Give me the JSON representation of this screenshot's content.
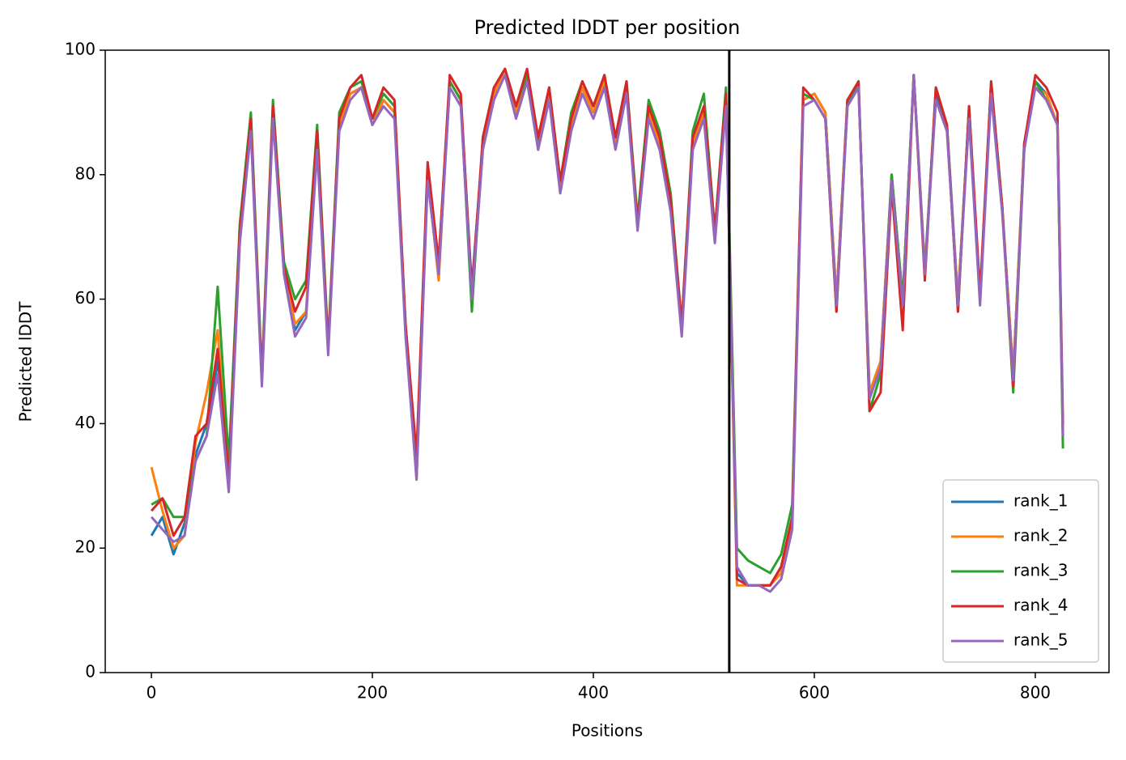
{
  "chart_data": {
    "type": "line",
    "title": "Predicted lDDT per position",
    "xlabel": "Positions",
    "ylabel": "Predicted lDDT",
    "x": [
      0,
      10,
      20,
      30,
      40,
      50,
      60,
      70,
      80,
      90,
      100,
      110,
      120,
      130,
      140,
      150,
      160,
      170,
      180,
      190,
      200,
      210,
      220,
      230,
      240,
      250,
      260,
      270,
      280,
      290,
      300,
      310,
      320,
      330,
      340,
      350,
      360,
      370,
      380,
      390,
      400,
      410,
      420,
      430,
      440,
      450,
      460,
      470,
      480,
      490,
      500,
      510,
      520,
      530,
      540,
      550,
      560,
      570,
      580,
      590,
      600,
      610,
      620,
      630,
      640,
      650,
      660,
      670,
      680,
      690,
      700,
      710,
      720,
      730,
      740,
      750,
      760,
      770,
      780,
      790,
      800,
      810,
      820,
      825
    ],
    "series": [
      {
        "name": "rank_1",
        "color": "#1f77b4",
        "values": [
          22,
          25,
          19,
          24,
          35,
          40,
          50,
          30,
          70,
          88,
          47,
          90,
          65,
          55,
          58,
          85,
          52,
          88,
          93,
          94,
          88,
          92,
          90,
          55,
          32,
          80,
          65,
          95,
          92,
          62,
          85,
          93,
          97,
          90,
          96,
          85,
          93,
          78,
          88,
          94,
          90,
          95,
          85,
          94,
          72,
          90,
          85,
          75,
          55,
          85,
          90,
          70,
          92,
          16,
          14,
          14,
          14,
          17,
          25,
          92,
          93,
          90,
          60,
          92,
          94,
          45,
          50,
          80,
          60,
          96,
          65,
          93,
          88,
          60,
          90,
          60,
          94,
          75,
          48,
          85,
          95,
          93,
          88,
          38
        ]
      },
      {
        "name": "rank_2",
        "color": "#ff7f0e",
        "values": [
          33,
          26,
          20,
          22,
          37,
          45,
          55,
          30,
          69,
          88,
          47,
          90,
          65,
          56,
          58,
          85,
          52,
          88,
          93,
          94,
          88,
          92,
          90,
          55,
          31,
          80,
          63,
          95,
          92,
          60,
          84,
          93,
          97,
          90,
          96,
          84,
          93,
          78,
          88,
          94,
          90,
          95,
          85,
          94,
          72,
          90,
          85,
          75,
          55,
          85,
          90,
          70,
          92,
          14,
          14,
          14,
          14,
          16,
          24,
          92,
          93,
          90,
          60,
          92,
          94,
          45,
          50,
          80,
          60,
          96,
          65,
          92,
          87,
          60,
          90,
          60,
          94,
          75,
          48,
          85,
          94,
          93,
          88,
          38
        ]
      },
      {
        "name": "rank_3",
        "color": "#2ca02c",
        "values": [
          27,
          28,
          25,
          25,
          34,
          38,
          62,
          34,
          72,
          90,
          48,
          92,
          66,
          60,
          63,
          88,
          53,
          90,
          94,
          95,
          89,
          93,
          91,
          56,
          33,
          81,
          66,
          95,
          92,
          58,
          86,
          94,
          97,
          91,
          96,
          86,
          94,
          79,
          90,
          95,
          91,
          96,
          86,
          95,
          73,
          92,
          87,
          77,
          56,
          87,
          93,
          71,
          94,
          20,
          18,
          17,
          16,
          19,
          27,
          93,
          92,
          89,
          58,
          91,
          95,
          42,
          48,
          80,
          60,
          96,
          64,
          94,
          88,
          58,
          91,
          60,
          95,
          75,
          45,
          84,
          95,
          92,
          88,
          36
        ]
      },
      {
        "name": "rank_4",
        "color": "#d62728",
        "values": [
          26,
          28,
          22,
          25,
          38,
          40,
          52,
          31,
          71,
          89,
          47,
          91,
          65,
          58,
          62,
          87,
          52,
          89,
          94,
          96,
          89,
          94,
          92,
          56,
          35,
          82,
          66,
          96,
          93,
          61,
          86,
          94,
          97,
          91,
          97,
          86,
          94,
          79,
          89,
          95,
          91,
          96,
          86,
          95,
          72,
          91,
          86,
          76,
          56,
          86,
          91,
          71,
          93,
          15,
          14,
          14,
          14,
          17,
          25,
          94,
          92,
          89,
          58,
          92,
          95,
          42,
          45,
          78,
          55,
          96,
          63,
          94,
          88,
          58,
          91,
          61,
          95,
          75,
          46,
          85,
          96,
          94,
          90,
          40
        ]
      },
      {
        "name": "rank_5",
        "color": "#9467bd",
        "values": [
          25,
          23,
          21,
          22,
          34,
          38,
          48,
          29,
          69,
          87,
          46,
          89,
          64,
          54,
          57,
          84,
          51,
          87,
          92,
          94,
          88,
          91,
          89,
          54,
          31,
          79,
          64,
          94,
          91,
          60,
          84,
          92,
          96,
          89,
          95,
          84,
          92,
          77,
          87,
          93,
          89,
          94,
          84,
          93,
          71,
          89,
          84,
          74,
          54,
          84,
          89,
          69,
          91,
          17,
          14,
          14,
          13,
          15,
          23,
          91,
          92,
          89,
          59,
          91,
          94,
          44,
          49,
          79,
          59,
          96,
          64,
          92,
          87,
          59,
          89,
          59,
          93,
          74,
          47,
          84,
          94,
          92,
          88,
          38
        ]
      }
    ],
    "vline": 523,
    "vline_color": "#000000",
    "xlim": [
      -41.8,
      866.7
    ],
    "xticks": [
      0,
      200,
      400,
      600,
      800
    ],
    "ylim": [
      0,
      100
    ],
    "yticks": [
      0,
      20,
      40,
      60,
      80,
      100
    ],
    "legend": "lower right"
  }
}
